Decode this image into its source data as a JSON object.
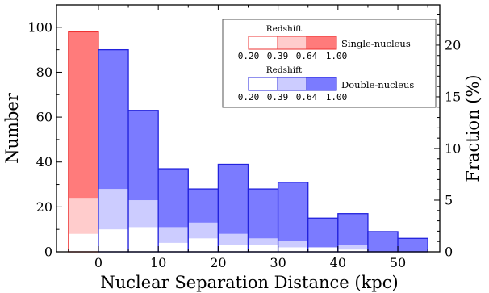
{
  "chart_data": {
    "type": "bar",
    "xlabel": "Nuclear Separation Distance (kpc)",
    "ylabel": "Number",
    "y2label": "Fraction (%)",
    "xlim": [
      -7,
      57
    ],
    "ylim": [
      0,
      110
    ],
    "y2lim": [
      0,
      23.9
    ],
    "xticks": [
      "0",
      "10",
      "20",
      "30",
      "40",
      "50"
    ],
    "yticks": [
      "0",
      "20",
      "40",
      "60",
      "80",
      "100"
    ],
    "y2ticks": [
      "0",
      "5",
      "10",
      "15",
      "20"
    ],
    "legend_position": "top-right",
    "legend": {
      "redshift_label": "Redshift",
      "redshift_ticks": [
        "0.20",
        "0.39",
        "0.64",
        "1.00"
      ],
      "single_label": "Single-nucleus",
      "double_label": "Double-nucleus"
    },
    "colors": {
      "single": "#ff7b7b",
      "single_mid": "#ffcccc",
      "single_edge": "#ee3333",
      "double": "#7b7bff",
      "double_mid": "#ccccff",
      "double_edge": "#2222dd"
    },
    "series": [
      {
        "name": "Single-nucleus",
        "bins": [
          [
            -5,
            0
          ]
        ],
        "redshift_bins": [
          {
            "range": "0.20-0.39",
            "values": [
              8
            ]
          },
          {
            "range": "0.39-0.64",
            "values": [
              16
            ]
          },
          {
            "range": "0.64-1.00",
            "values": [
              74
            ]
          }
        ],
        "totals": [
          98
        ]
      },
      {
        "name": "Double-nucleus",
        "bins": [
          [
            0,
            5
          ],
          [
            5,
            10
          ],
          [
            10,
            15
          ],
          [
            15,
            20
          ],
          [
            20,
            25
          ],
          [
            25,
            30
          ],
          [
            30,
            35
          ],
          [
            35,
            40
          ],
          [
            40,
            45
          ],
          [
            45,
            50
          ],
          [
            50,
            55
          ]
        ],
        "redshift_bins": [
          {
            "range": "0.20-0.39",
            "values": [
              10,
              11,
              4,
              6,
              3,
              3,
              2,
              2,
              1,
              0,
              0
            ]
          },
          {
            "range": "0.39-0.64",
            "values": [
              18,
              12,
              7,
              7,
              5,
              3,
              3,
              0,
              2,
              0,
              0
            ]
          },
          {
            "range": "0.64-1.00",
            "values": [
              62,
              40,
              26,
              15,
              31,
              22,
              26,
              13,
              14,
              9,
              6
            ]
          }
        ],
        "totals": [
          90,
          63,
          37,
          28,
          39,
          28,
          31,
          15,
          17,
          9,
          6
        ]
      }
    ]
  }
}
